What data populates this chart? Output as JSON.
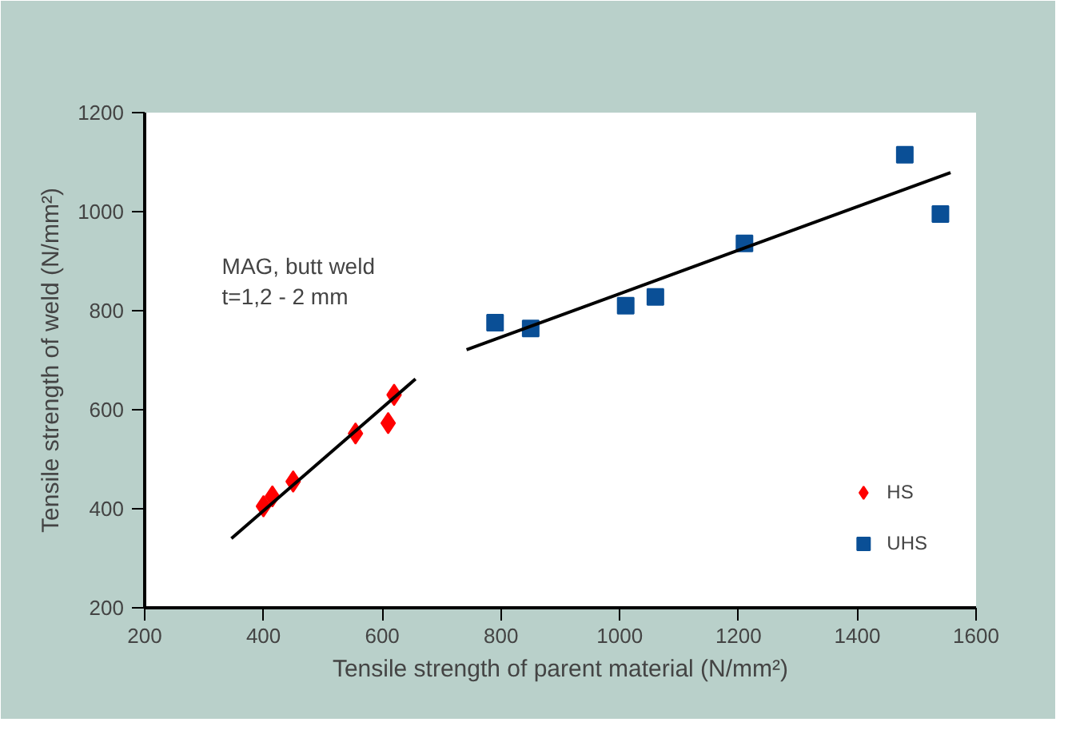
{
  "chart_data": {
    "type": "scatter",
    "xlabel": "Tensile strength of parent material (N/mm²)",
    "ylabel": "Tensile strength of weld (N/mm²)",
    "annotations": [
      "MAG, butt weld\nt=1,2 - 2 mm"
    ],
    "series": [
      {
        "name": "HS",
        "color": "#ff0000",
        "marker": "diamond",
        "x": [
          400,
          415,
          450,
          555,
          610,
          620
        ],
        "values": [
          405,
          425,
          455,
          552,
          573,
          630
        ]
      },
      {
        "name": "UHS",
        "color": "#0a4f96",
        "marker": "square",
        "x": [
          790,
          850,
          1010,
          1060,
          1210,
          1480,
          1540
        ],
        "values": [
          776,
          764,
          810,
          828,
          936,
          1115,
          995
        ]
      },
      {
        "type": "line",
        "color": "#000000",
        "x": [
          346,
          656
        ],
        "values": [
          340,
          662
        ]
      },
      {
        "type": "line",
        "color": "#000000",
        "x": [
          742,
          1557
        ],
        "values": [
          721,
          1079
        ]
      }
    ],
    "xlim": [
      200,
      1600
    ],
    "ylim": [
      200,
      1200
    ],
    "xticks": [
      200,
      400,
      600,
      800,
      1000,
      1200,
      1400,
      1600
    ],
    "yticks": [
      200,
      400,
      600,
      800,
      1000,
      1200
    ],
    "grid": false,
    "legend": "bottom right"
  }
}
